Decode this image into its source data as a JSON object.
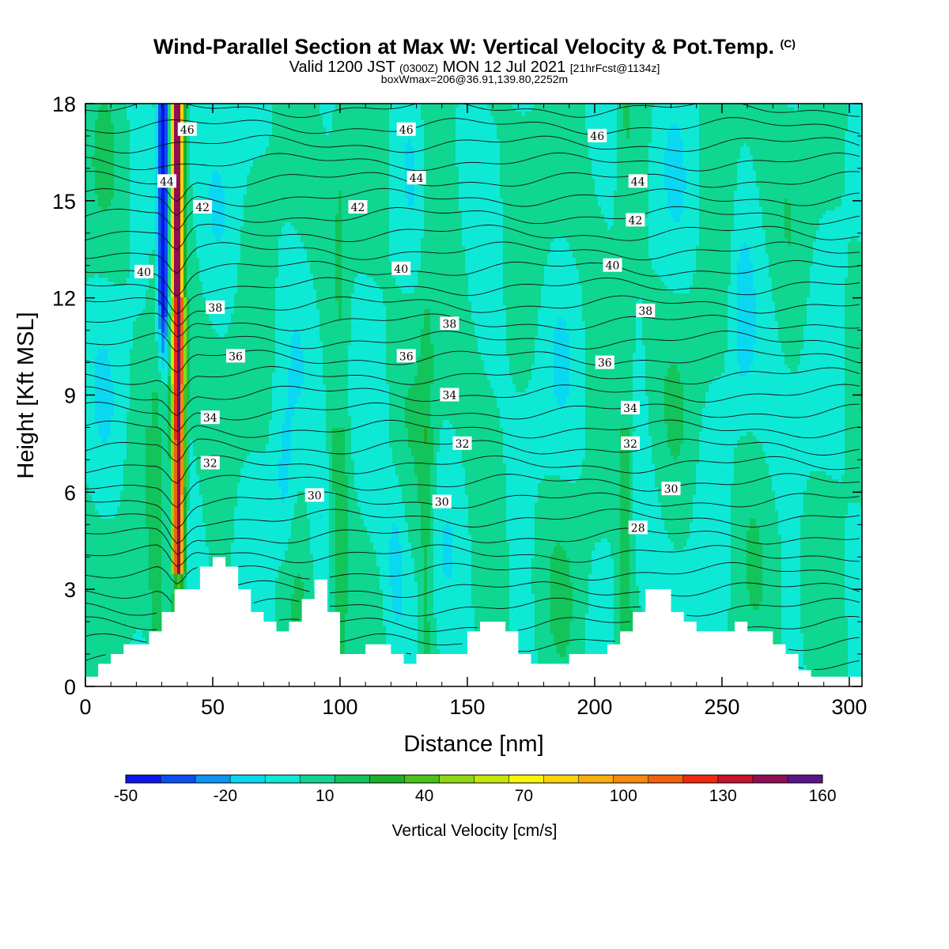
{
  "header": {
    "title_main": "Wind-Parallel Section at Max W: Vertical Velocity & Pot.Temp.",
    "title_mark": "(C)",
    "valid_a": "Valid 1200 JST",
    "valid_b": "(0300Z)",
    "valid_c": "MON 12 Jul 2021",
    "valid_d": "[21hrFcst@1134z]",
    "subtitle": "boxWmax=206@36.91,139.80,2252m"
  },
  "chart_data": {
    "type": "heatmap",
    "title": "Wind-Parallel Section at Max W: Vertical Velocity & Pot.Temp.",
    "xlabel": "Distance [nm]",
    "ylabel": "Height [Kft MSL]",
    "xlim": [
      0,
      305
    ],
    "ylim": [
      0,
      18
    ],
    "x_ticks": [
      0,
      50,
      100,
      150,
      200,
      250,
      300
    ],
    "y_ticks": [
      0,
      3,
      6,
      9,
      12,
      15,
      18
    ],
    "colorbar": {
      "label": "Vertical Velocity [cm/s]",
      "tick_values": [
        -50,
        -20,
        10,
        40,
        70,
        100,
        130,
        160
      ],
      "colors": [
        "#0a17e8",
        "#0a4ff0",
        "#0b95f5",
        "#0ad8f2",
        "#0ee9d6",
        "#0fd690",
        "#12c45a",
        "#1cb02a",
        "#49c21b",
        "#8fd712",
        "#c6e60a",
        "#f6f608",
        "#fad40a",
        "#f9ae0c",
        "#f58a0e",
        "#f2620e",
        "#ee2a0f",
        "#c6122a",
        "#8f0f55",
        "#5b1488"
      ]
    },
    "terrain_kft": {
      "x": [
        0,
        5,
        10,
        15,
        20,
        25,
        30,
        35,
        40,
        45,
        50,
        55,
        60,
        65,
        70,
        75,
        80,
        85,
        90,
        95,
        100,
        105,
        110,
        115,
        120,
        125,
        130,
        135,
        140,
        145,
        150,
        155,
        160,
        165,
        170,
        175,
        180,
        185,
        190,
        195,
        200,
        205,
        210,
        215,
        220,
        225,
        230,
        235,
        240,
        245,
        250,
        255,
        260,
        265,
        270,
        275,
        280,
        285,
        290,
        295,
        300,
        305
      ],
      "y": [
        0.3,
        0.7,
        1.0,
        1.3,
        1.3,
        1.7,
        2.3,
        3.0,
        3.0,
        3.7,
        4.0,
        3.7,
        3.0,
        2.3,
        2.0,
        1.7,
        2.0,
        2.7,
        3.3,
        2.3,
        1.0,
        1.0,
        1.3,
        1.3,
        1.0,
        0.7,
        1.0,
        1.0,
        1.0,
        1.0,
        1.7,
        2.0,
        2.0,
        1.7,
        1.0,
        0.7,
        0.7,
        0.7,
        1.0,
        1.0,
        1.0,
        1.3,
        1.7,
        2.3,
        3.0,
        3.0,
        2.3,
        2.0,
        1.7,
        1.7,
        1.7,
        2.0,
        1.7,
        1.7,
        1.3,
        1.0,
        0.5,
        0.3,
        0.3,
        0.3,
        0.3,
        0.3
      ]
    },
    "theta_contours": [
      {
        "label": "46",
        "label_at": [
          [
            40,
            17.2
          ],
          [
            126,
            17.2
          ],
          [
            201,
            17.0
          ]
        ]
      },
      {
        "label": "44",
        "label_at": [
          [
            32,
            15.6
          ],
          [
            130,
            15.7
          ],
          [
            217,
            15.6
          ]
        ]
      },
      {
        "label": "42",
        "label_at": [
          [
            46,
            14.8
          ],
          [
            107,
            14.8
          ],
          [
            216,
            14.4
          ]
        ]
      },
      {
        "label": "40",
        "label_at": [
          [
            23,
            12.8
          ],
          [
            124,
            12.9
          ],
          [
            207,
            13.0
          ]
        ]
      },
      {
        "label": "38",
        "label_at": [
          [
            51,
            11.7
          ],
          [
            143,
            11.2
          ],
          [
            220,
            11.6
          ]
        ]
      },
      {
        "label": "36",
        "label_at": [
          [
            59,
            10.2
          ],
          [
            126,
            10.2
          ],
          [
            204,
            10.0
          ]
        ]
      },
      {
        "label": "34",
        "label_at": [
          [
            49,
            8.3
          ],
          [
            143,
            9.0
          ],
          [
            214,
            8.6
          ]
        ]
      },
      {
        "label": "32",
        "label_at": [
          [
            49,
            6.9
          ],
          [
            148,
            7.5
          ],
          [
            214,
            7.5
          ]
        ]
      },
      {
        "label": "30",
        "label_at": [
          [
            90,
            5.9
          ],
          [
            140,
            5.7
          ],
          [
            230,
            6.1
          ]
        ]
      },
      {
        "label": "28",
        "label_at": [
          [
            217,
            4.9
          ]
        ]
      }
    ],
    "w_max_band": {
      "x_range": [
        33,
        40
      ],
      "peak_cm_s": 160,
      "note_color": "red core"
    },
    "w_min_band": {
      "x_range": [
        28,
        34
      ],
      "min_cm_s": -50
    }
  }
}
